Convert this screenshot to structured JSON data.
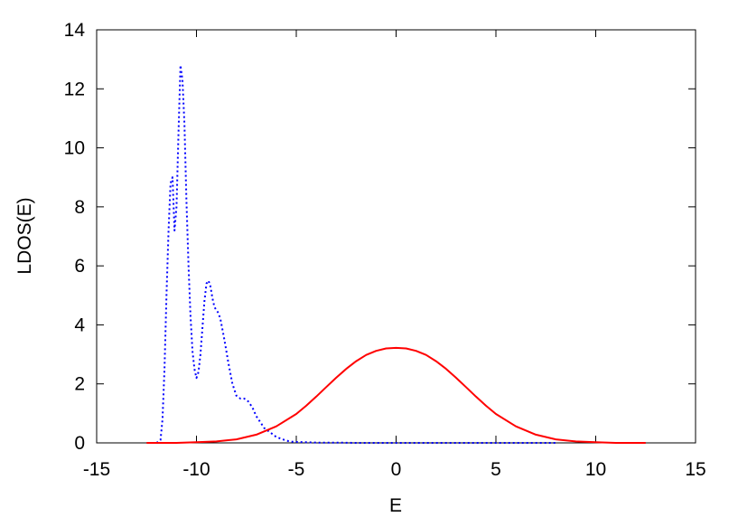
{
  "chart_data": {
    "type": "line",
    "title": "",
    "xlabel": "E",
    "ylabel": "LDOS(E)",
    "xlim": [
      -15,
      15
    ],
    "ylim": [
      0,
      14
    ],
    "xticks": [
      "-15",
      "-10",
      "-5",
      "0",
      "5",
      "10",
      "15"
    ],
    "yticks": [
      "0",
      "2",
      "4",
      "6",
      "8",
      "10",
      "12",
      "14"
    ],
    "grid": false,
    "legend": "none",
    "series": [
      {
        "color": "#0000ff",
        "style": "dotted",
        "x": [
          -12.0,
          -11.8,
          -11.7,
          -11.6,
          -11.5,
          -11.4,
          -11.3,
          -11.2,
          -11.1,
          -11.0,
          -10.9,
          -10.8,
          -10.7,
          -10.6,
          -10.5,
          -10.4,
          -10.3,
          -10.2,
          -10.1,
          -10.0,
          -9.9,
          -9.8,
          -9.7,
          -9.6,
          -9.5,
          -9.4,
          -9.3,
          -9.2,
          -9.1,
          -9.0,
          -8.9,
          -8.8,
          -8.6,
          -8.4,
          -8.2,
          -8.0,
          -7.8,
          -7.6,
          -7.4,
          -7.2,
          -7.0,
          -6.8,
          -6.6,
          -6.4,
          -6.2,
          -6.0,
          -5.8,
          -5.6,
          -5.4,
          -5.2,
          -5.0,
          -4.5,
          -4.0,
          -3.0,
          -2.0,
          0.0,
          2.0,
          5.0,
          8.0
        ],
        "y": [
          0.0,
          0.1,
          0.8,
          2.5,
          5.0,
          7.2,
          8.8,
          9.0,
          7.2,
          8.0,
          10.5,
          12.8,
          12.3,
          10.8,
          8.2,
          6.0,
          4.3,
          3.1,
          2.5,
          2.2,
          2.4,
          3.0,
          3.9,
          4.8,
          5.4,
          5.5,
          5.3,
          4.9,
          4.6,
          4.5,
          4.4,
          4.2,
          3.5,
          2.7,
          2.0,
          1.6,
          1.5,
          1.5,
          1.4,
          1.2,
          0.9,
          0.7,
          0.5,
          0.4,
          0.3,
          0.2,
          0.15,
          0.1,
          0.06,
          0.04,
          0.03,
          0.02,
          0.01,
          0.01,
          0.0,
          0.0,
          0.0,
          0.0,
          0.0
        ]
      },
      {
        "color": "#ff0000",
        "style": "solid",
        "x": [
          -12.5,
          -12.0,
          -11.0,
          -10.0,
          -9.0,
          -8.0,
          -7.0,
          -6.0,
          -5.0,
          -4.5,
          -4.0,
          -3.5,
          -3.0,
          -2.5,
          -2.0,
          -1.5,
          -1.0,
          -0.5,
          0.0,
          0.5,
          1.0,
          1.5,
          2.0,
          2.5,
          3.0,
          3.5,
          4.0,
          4.5,
          5.0,
          6.0,
          7.0,
          8.0,
          9.0,
          10.0,
          11.0,
          12.0,
          12.5
        ],
        "y": [
          0.0,
          0.0,
          0.0,
          0.02,
          0.05,
          0.12,
          0.28,
          0.56,
          0.98,
          1.26,
          1.57,
          1.89,
          2.21,
          2.51,
          2.77,
          2.98,
          3.12,
          3.2,
          3.22,
          3.2,
          3.12,
          2.98,
          2.77,
          2.51,
          2.21,
          1.89,
          1.57,
          1.26,
          0.98,
          0.56,
          0.28,
          0.12,
          0.05,
          0.02,
          0.0,
          0.0,
          0.0
        ]
      }
    ]
  }
}
